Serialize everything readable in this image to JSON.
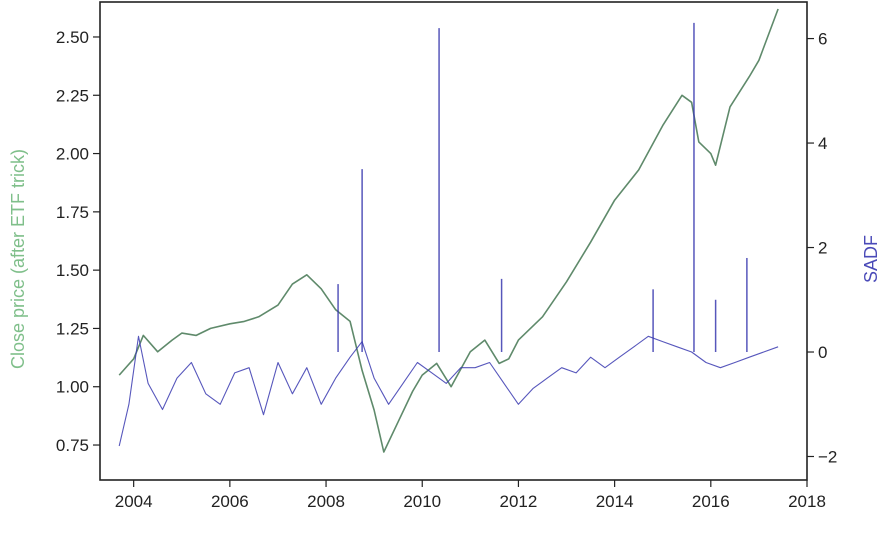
{
  "chart_data": {
    "type": "line",
    "xlabel": "",
    "ylabel_left": "Close price (after ETF trick)",
    "ylabel_right": "SADF",
    "colors": {
      "price": "#5f8a6b",
      "sadf": "#3a3ab0",
      "left_label": "#7fbf8a",
      "right_label": "#4a4ab8"
    },
    "x_ticks": [
      "2004",
      "2006",
      "2008",
      "2010",
      "2012",
      "2014",
      "2016",
      "2018"
    ],
    "y_left_ticks": [
      "0.75",
      "1.00",
      "1.25",
      "1.50",
      "1.75",
      "2.00",
      "2.25",
      "2.50"
    ],
    "y_right_ticks": [
      "−2",
      "0",
      "2",
      "4",
      "6"
    ],
    "xlim": [
      2003.3,
      2018.0
    ],
    "ylim_left": [
      0.6,
      2.65
    ],
    "ylim_right": [
      -2.45,
      6.7
    ],
    "series": [
      {
        "axis": "left",
        "x": [
          2003.7,
          2004.0,
          2004.2,
          2004.5,
          2004.8,
          2005.0,
          2005.3,
          2005.6,
          2006.0,
          2006.3,
          2006.6,
          2007.0,
          2007.3,
          2007.6,
          2007.9,
          2008.2,
          2008.5,
          2008.75,
          2009.0,
          2009.2,
          2009.5,
          2009.8,
          2010.0,
          2010.3,
          2010.6,
          2011.0,
          2011.3,
          2011.6,
          2011.8,
          2012.0,
          2012.5,
          2013.0,
          2013.5,
          2014.0,
          2014.5,
          2015.0,
          2015.4,
          2015.6,
          2015.75,
          2016.0,
          2016.1,
          2016.4,
          2016.8,
          2017.0,
          2017.4
        ],
        "y": [
          1.05,
          1.12,
          1.22,
          1.15,
          1.2,
          1.23,
          1.22,
          1.25,
          1.27,
          1.28,
          1.3,
          1.35,
          1.44,
          1.48,
          1.42,
          1.33,
          1.28,
          1.07,
          0.9,
          0.72,
          0.85,
          0.98,
          1.05,
          1.1,
          1.0,
          1.15,
          1.2,
          1.1,
          1.12,
          1.2,
          1.3,
          1.45,
          1.62,
          1.8,
          1.93,
          2.12,
          2.25,
          2.22,
          2.05,
          2.0,
          1.95,
          2.2,
          2.33,
          2.4,
          2.62
        ]
      },
      {
        "axis": "right",
        "x": [
          2003.7,
          2003.9,
          2004.1,
          2004.3,
          2004.6,
          2004.9,
          2005.2,
          2005.5,
          2005.8,
          2006.1,
          2006.4,
          2006.7,
          2007.0,
          2007.3,
          2007.6,
          2007.9,
          2008.2,
          2008.5,
          2008.75,
          2009.0,
          2009.3,
          2009.6,
          2009.9,
          2010.2,
          2010.5,
          2010.8,
          2011.1,
          2011.4,
          2011.7,
          2012.0,
          2012.3,
          2012.6,
          2012.9,
          2013.2,
          2013.5,
          2013.8,
          2014.1,
          2014.4,
          2014.7,
          2015.0,
          2015.3,
          2015.6,
          2015.9,
          2016.2,
          2016.5,
          2016.8,
          2017.1,
          2017.4
        ],
        "y": [
          -1.8,
          -1.0,
          0.3,
          -0.6,
          -1.1,
          -0.5,
          -0.2,
          -0.8,
          -1.0,
          -0.4,
          -0.3,
          -1.2,
          -0.2,
          -0.8,
          -0.3,
          -1.0,
          -0.5,
          -0.1,
          0.2,
          -0.5,
          -1.0,
          -0.6,
          -0.2,
          -0.4,
          -0.6,
          -0.3,
          -0.3,
          -0.2,
          -0.6,
          -1.0,
          -0.7,
          -0.5,
          -0.3,
          -0.4,
          -0.1,
          -0.3,
          -0.1,
          0.1,
          0.3,
          0.2,
          0.1,
          0.0,
          -0.2,
          -0.3,
          -0.2,
          -0.1,
          0.0,
          0.1
        ]
      }
    ],
    "spikes": [
      {
        "x": 2008.25,
        "y": 1.3
      },
      {
        "x": 2008.75,
        "y": 3.5
      },
      {
        "x": 2010.35,
        "y": 6.2
      },
      {
        "x": 2011.65,
        "y": 1.4
      },
      {
        "x": 2014.8,
        "y": 1.2
      },
      {
        "x": 2015.65,
        "y": 6.3
      },
      {
        "x": 2016.1,
        "y": 1.0
      },
      {
        "x": 2016.75,
        "y": 1.8
      }
    ]
  }
}
